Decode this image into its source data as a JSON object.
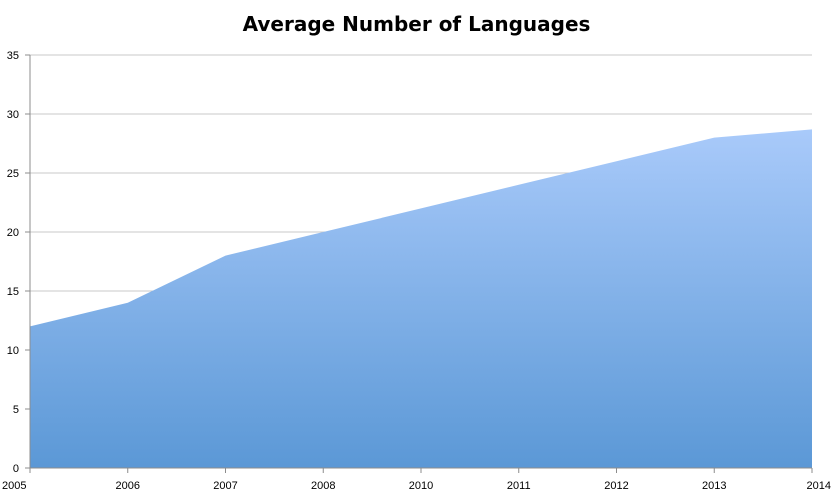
{
  "chart_data": {
    "type": "area",
    "title": "Average Number of Languages",
    "xlabel": "",
    "ylabel": "",
    "categories": [
      "2005",
      "2006",
      "2007",
      "2008",
      "2010",
      "2011",
      "2012",
      "2013",
      "2014"
    ],
    "series": [
      {
        "values": [
          12,
          14,
          18,
          20,
          22,
          24,
          26,
          28,
          28.7
        ]
      }
    ],
    "ylim": [
      0,
      35
    ],
    "yticks": [
      0,
      5,
      10,
      15,
      20,
      25,
      30,
      35
    ],
    "grid": true,
    "legend": "none",
    "colors": {
      "fill_top": "#a9cafa",
      "fill_bottom": "#5b98d6",
      "grid": "#c8c8c8",
      "axis": "#8c8c8c"
    }
  }
}
